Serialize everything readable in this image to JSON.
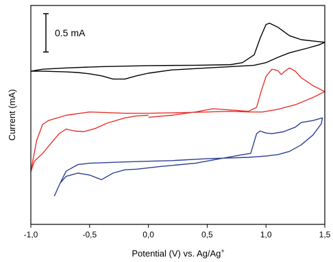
{
  "chart_data": {
    "type": "line",
    "xlabel": "Potential (V) vs. Ag/Ag",
    "xlabel_sup": "+",
    "ylabel": "Current (mA)",
    "xlim": [
      -1.0,
      1.5
    ],
    "x_ticks": [
      -1.0,
      -0.5,
      0.0,
      0.5,
      1.0,
      1.5
    ],
    "x_tick_labels": [
      "-1,0",
      "-0,5",
      "0,0",
      "0,5",
      "1,0",
      "1,5"
    ],
    "y_ticks_shown": false,
    "scale_bar": {
      "label": "0.5 mA",
      "value_mA": 0.5
    },
    "ylim": [
      -2.38,
      0.95
    ],
    "series": [
      {
        "color": "#000000",
        "points": [
          [
            -1.0,
            -0.05
          ],
          [
            -0.9,
            -0.02
          ],
          [
            -0.7,
            0.0
          ],
          [
            -0.4,
            0.02
          ],
          [
            0.0,
            0.035
          ],
          [
            0.4,
            0.04
          ],
          [
            0.7,
            0.05
          ],
          [
            0.8,
            0.08
          ],
          [
            0.9,
            0.2
          ],
          [
            0.95,
            0.45
          ],
          [
            1.0,
            0.66
          ],
          [
            1.03,
            0.68
          ],
          [
            1.1,
            0.62
          ],
          [
            1.2,
            0.49
          ],
          [
            1.3,
            0.43
          ],
          [
            1.4,
            0.41
          ],
          [
            1.5,
            0.39
          ],
          [
            1.45,
            0.35
          ],
          [
            1.35,
            0.3
          ],
          [
            1.2,
            0.23
          ],
          [
            1.1,
            0.16
          ],
          [
            1.0,
            0.08
          ],
          [
            0.9,
            0.04
          ],
          [
            0.7,
            0.02
          ],
          [
            0.5,
            0.0
          ],
          [
            0.2,
            -0.03
          ],
          [
            0.0,
            -0.08
          ],
          [
            -0.1,
            -0.12
          ],
          [
            -0.2,
            -0.17
          ],
          [
            -0.3,
            -0.17
          ],
          [
            -0.4,
            -0.12
          ],
          [
            -0.5,
            -0.09
          ],
          [
            -0.6,
            -0.07
          ],
          [
            -0.7,
            -0.06
          ],
          [
            -0.8,
            -0.055
          ],
          [
            -0.9,
            -0.05
          ],
          [
            -1.0,
            -0.05
          ]
        ]
      },
      {
        "color": "#e8322c",
        "points": [
          [
            0.0,
            -0.75
          ],
          [
            0.2,
            -0.72
          ],
          [
            0.4,
            -0.67
          ],
          [
            0.55,
            -0.62
          ],
          [
            0.7,
            -0.64
          ],
          [
            0.85,
            -0.66
          ],
          [
            0.92,
            -0.6
          ],
          [
            0.96,
            -0.35
          ],
          [
            1.0,
            -0.13
          ],
          [
            1.05,
            -0.02
          ],
          [
            1.1,
            -0.04
          ],
          [
            1.13,
            -0.1
          ],
          [
            1.16,
            -0.05
          ],
          [
            1.2,
            0.0
          ],
          [
            1.25,
            -0.05
          ],
          [
            1.3,
            -0.15
          ],
          [
            1.4,
            -0.27
          ],
          [
            1.5,
            -0.36
          ],
          [
            1.4,
            -0.45
          ],
          [
            1.25,
            -0.56
          ],
          [
            1.1,
            -0.63
          ],
          [
            0.97,
            -0.67
          ],
          [
            0.85,
            -0.67
          ],
          [
            0.7,
            -0.66
          ],
          [
            0.5,
            -0.67
          ],
          [
            0.3,
            -0.68
          ],
          [
            0.0,
            -0.69
          ],
          [
            -0.2,
            -0.69
          ],
          [
            -0.5,
            -0.67
          ],
          [
            -0.7,
            -0.72
          ],
          [
            -0.85,
            -0.8
          ],
          [
            -0.9,
            -0.86
          ],
          [
            -0.95,
            -1.1
          ],
          [
            -0.98,
            -1.38
          ],
          [
            -1.0,
            -1.58
          ],
          [
            -0.97,
            -1.42
          ],
          [
            -0.9,
            -1.3
          ],
          [
            -0.83,
            -1.15
          ],
          [
            -0.76,
            -1.0
          ],
          [
            -0.7,
            -0.93
          ],
          [
            -0.63,
            -0.96
          ],
          [
            -0.55,
            -0.97
          ],
          [
            -0.45,
            -0.92
          ],
          [
            -0.35,
            -0.84
          ],
          [
            -0.2,
            -0.76
          ],
          [
            -0.1,
            -0.73
          ],
          [
            0.0,
            -0.72
          ]
        ]
      },
      {
        "color": "#2b3f94",
        "points": [
          [
            -0.8,
            -1.95
          ],
          [
            -0.75,
            -1.75
          ],
          [
            -0.7,
            -1.65
          ],
          [
            -0.6,
            -1.6
          ],
          [
            -0.5,
            -1.63
          ],
          [
            -0.4,
            -1.7
          ],
          [
            -0.3,
            -1.6
          ],
          [
            -0.2,
            -1.55
          ],
          [
            -0.1,
            -1.54
          ],
          [
            0.1,
            -1.5
          ],
          [
            0.4,
            -1.45
          ],
          [
            0.8,
            -1.32
          ],
          [
            0.87,
            -1.3
          ],
          [
            0.92,
            -1.0
          ],
          [
            0.95,
            -0.96
          ],
          [
            1.0,
            -0.99
          ],
          [
            1.05,
            -1.0
          ],
          [
            1.15,
            -0.97
          ],
          [
            1.25,
            -0.9
          ],
          [
            1.3,
            -0.83
          ],
          [
            1.4,
            -0.8
          ],
          [
            1.48,
            -0.76
          ],
          [
            1.47,
            -0.85
          ],
          [
            1.4,
            -1.02
          ],
          [
            1.3,
            -1.17
          ],
          [
            1.2,
            -1.27
          ],
          [
            1.1,
            -1.32
          ],
          [
            1.0,
            -1.34
          ],
          [
            0.85,
            -1.36
          ],
          [
            0.5,
            -1.38
          ],
          [
            0.2,
            -1.41
          ],
          [
            0.0,
            -1.42
          ],
          [
            -0.2,
            -1.43
          ],
          [
            -0.5,
            -1.45
          ],
          [
            -0.6,
            -1.47
          ],
          [
            -0.7,
            -1.57
          ],
          [
            -0.75,
            -1.75
          ],
          [
            -0.8,
            -1.95
          ]
        ]
      }
    ]
  }
}
